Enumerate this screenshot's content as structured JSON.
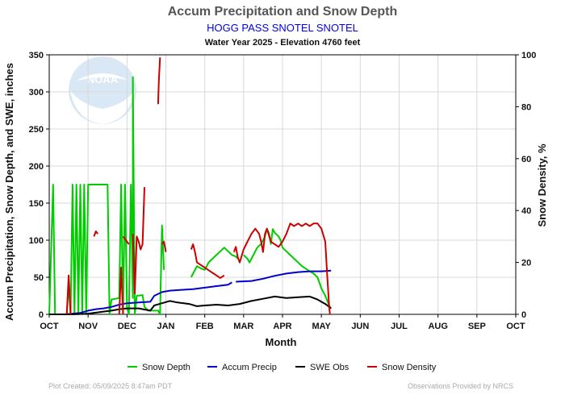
{
  "chart_data": {
    "type": "line",
    "title": "Accum Precipitation and Snow Depth",
    "subtitle": "HOGG PASS SNOTEL SNOTEL",
    "subtitle2": "Water Year 2025 -  Elevation 4760 feet",
    "xlabel": "Month",
    "ylabel_left": "Accum Precipitation, Snow Depth, and SWE, inches",
    "ylabel_right": "Snow Density, %",
    "x_categories": [
      "OCT",
      "NOV",
      "DEC",
      "JAN",
      "FEB",
      "MAR",
      "APR",
      "MAY",
      "JUN",
      "JUL",
      "AUG",
      "SEP",
      "OCT"
    ],
    "ylim_left": [
      0,
      350
    ],
    "yticks_left": [
      "0",
      "50",
      "100",
      "150",
      "200",
      "250",
      "300",
      "350"
    ],
    "ylim_right": [
      0,
      100
    ],
    "yticks_right": [
      "0",
      "20",
      "40",
      "60",
      "80",
      "100"
    ],
    "grid": true,
    "legend_position": "bottom",
    "series": [
      {
        "name": "Snow Depth",
        "color": "#00cc00",
        "axis": "left",
        "segments": [
          [
            [
              0.0,
              0
            ],
            [
              0.1,
              175
            ],
            [
              0.15,
              0
            ],
            [
              0.45,
              0
            ],
            [
              0.5,
              40
            ],
            [
              0.55,
              0
            ],
            [
              0.6,
              175
            ],
            [
              0.65,
              0
            ],
            [
              0.7,
              175
            ],
            [
              0.75,
              0
            ],
            [
              0.8,
              175
            ],
            [
              0.85,
              0
            ],
            [
              0.9,
              175
            ],
            [
              0.95,
              0
            ],
            [
              1.0,
              175
            ],
            [
              1.5,
              175
            ],
            [
              1.55,
              0
            ],
            [
              1.6,
              20
            ],
            [
              1.8,
              22
            ],
            [
              1.85,
              175
            ],
            [
              1.9,
              0
            ],
            [
              1.95,
              175
            ],
            [
              2.0,
              10
            ],
            [
              2.05,
              0
            ],
            [
              2.1,
              175
            ],
            [
              2.15,
              22
            ],
            [
              2.15,
              320
            ],
            [
              2.2,
              0
            ],
            [
              2.25,
              25
            ],
            [
              2.4,
              26
            ],
            [
              2.45,
              10
            ],
            [
              2.55,
              5
            ],
            [
              2.8,
              5
            ],
            [
              2.85,
              0
            ],
            [
              2.9,
              120
            ],
            [
              2.95,
              60
            ]
          ],
          [
            [
              3.65,
              50
            ],
            [
              3.7,
              55
            ],
            [
              3.8,
              65
            ],
            [
              3.9,
              62
            ],
            [
              4.0,
              60
            ],
            [
              4.1,
              70
            ],
            [
              4.2,
              75
            ],
            [
              4.3,
              80
            ],
            [
              4.4,
              85
            ],
            [
              4.5,
              90
            ],
            [
              4.6,
              85
            ],
            [
              4.7,
              80
            ],
            [
              4.8,
              78
            ],
            [
              4.85,
              75
            ]
          ],
          [
            [
              5.0,
              80
            ],
            [
              5.1,
              75
            ],
            [
              5.15,
              70
            ],
            [
              5.25,
              80
            ],
            [
              5.35,
              90
            ],
            [
              5.45,
              95
            ],
            [
              5.55,
              105
            ],
            [
              5.6,
              115
            ],
            [
              5.65,
              110
            ],
            [
              5.7,
              95
            ],
            [
              5.75,
              115
            ],
            [
              5.8,
              110
            ],
            [
              5.9,
              105
            ],
            [
              5.95,
              100
            ],
            [
              6.0,
              90
            ],
            [
              6.1,
              85
            ],
            [
              6.2,
              80
            ],
            [
              6.3,
              75
            ],
            [
              6.5,
              65
            ],
            [
              6.7,
              58
            ],
            [
              6.8,
              55
            ],
            [
              6.9,
              50
            ],
            [
              7.0,
              35
            ],
            [
              7.1,
              25
            ],
            [
              7.2,
              12
            ],
            [
              7.25,
              8
            ]
          ]
        ]
      },
      {
        "name": "Accum Precip",
        "color": "#0000cc",
        "axis": "left",
        "segments": [
          [
            [
              0.0,
              0
            ],
            [
              0.4,
              0
            ],
            [
              0.6,
              1
            ],
            [
              0.8,
              2
            ],
            [
              1.0,
              5
            ],
            [
              1.2,
              7
            ],
            [
              1.4,
              8
            ],
            [
              1.6,
              10
            ],
            [
              1.8,
              13
            ],
            [
              2.0,
              15
            ],
            [
              2.3,
              16
            ],
            [
              2.6,
              17
            ],
            [
              2.7,
              25
            ],
            [
              2.9,
              30
            ],
            [
              3.1,
              32
            ],
            [
              3.4,
              33
            ],
            [
              3.7,
              34
            ],
            [
              4.0,
              36
            ],
            [
              4.3,
              38
            ],
            [
              4.6,
              40
            ],
            [
              4.7,
              43
            ]
          ],
          [
            [
              4.8,
              44
            ],
            [
              5.2,
              45
            ],
            [
              5.5,
              48
            ],
            [
              5.8,
              52
            ],
            [
              6.1,
              55
            ],
            [
              6.4,
              57
            ],
            [
              6.7,
              58
            ],
            [
              7.0,
              58
            ],
            [
              7.25,
              59
            ]
          ]
        ]
      },
      {
        "name": "SWE Obs",
        "color": "#000000",
        "axis": "left",
        "segments": [
          [
            [
              0.0,
              0
            ],
            [
              0.6,
              0
            ],
            [
              1.0,
              1
            ],
            [
              1.3,
              3
            ],
            [
              1.6,
              5
            ],
            [
              1.8,
              7
            ],
            [
              2.0,
              8
            ],
            [
              2.3,
              8
            ],
            [
              2.5,
              6
            ],
            [
              2.6,
              5
            ],
            [
              2.7,
              12
            ],
            [
              2.9,
              15
            ],
            [
              3.1,
              18
            ],
            [
              3.3,
              16
            ],
            [
              3.6,
              14
            ],
            [
              3.8,
              11
            ],
            [
              4.0,
              12
            ],
            [
              4.3,
              13
            ],
            [
              4.6,
              12
            ],
            [
              4.9,
              14
            ],
            [
              5.2,
              18
            ],
            [
              5.5,
              21
            ],
            [
              5.8,
              24
            ],
            [
              6.1,
              22
            ],
            [
              6.4,
              23
            ],
            [
              6.7,
              24
            ],
            [
              6.9,
              20
            ],
            [
              7.1,
              14
            ],
            [
              7.25,
              8
            ]
          ]
        ]
      },
      {
        "name": "Snow Density",
        "color": "#cc0000",
        "axis": "right",
        "segments": [
          [
            [
              0.45,
              0
            ],
            [
              0.5,
              15
            ],
            [
              0.55,
              0
            ]
          ],
          [
            [
              1.15,
              30
            ],
            [
              1.2,
              32
            ],
            [
              1.25,
              31
            ]
          ],
          [
            [
              1.8,
              0
            ],
            [
              1.85,
              18
            ],
            [
              1.9,
              0
            ]
          ],
          [
            [
              1.9,
              30
            ],
            [
              2.0,
              28
            ],
            [
              2.05,
              27
            ]
          ],
          [
            [
              2.15,
              31
            ],
            [
              2.2,
              8
            ],
            [
              2.25,
              30
            ],
            [
              2.3,
              28
            ],
            [
              2.35,
              25
            ],
            [
              2.4,
              27
            ],
            [
              2.45,
              49
            ]
          ],
          [
            [
              2.8,
              81
            ],
            [
              2.82,
              90
            ],
            [
              2.85,
              99
            ]
          ],
          [
            [
              2.9,
              27
            ],
            [
              2.95,
              28
            ],
            [
              3.0,
              24
            ]
          ],
          [
            [
              3.65,
              25
            ],
            [
              3.7,
              27
            ],
            [
              3.75,
              24
            ],
            [
              3.8,
              20
            ],
            [
              3.9,
              19
            ],
            [
              4.0,
              18
            ],
            [
              4.1,
              17
            ],
            [
              4.2,
              16
            ],
            [
              4.3,
              15
            ],
            [
              4.4,
              14
            ],
            [
              4.5,
              15
            ]
          ],
          [
            [
              4.75,
              24
            ],
            [
              4.8,
              26
            ],
            [
              4.85,
              22
            ],
            [
              4.9,
              20
            ],
            [
              5.0,
              25
            ],
            [
              5.1,
              28
            ],
            [
              5.2,
              31
            ],
            [
              5.3,
              33
            ],
            [
              5.4,
              31
            ],
            [
              5.45,
              28
            ],
            [
              5.5,
              24
            ],
            [
              5.55,
              31
            ],
            [
              5.6,
              33
            ],
            [
              5.7,
              28
            ],
            [
              5.8,
              27
            ],
            [
              5.9,
              26
            ],
            [
              6.0,
              28
            ],
            [
              6.1,
              31
            ],
            [
              6.2,
              35
            ],
            [
              6.3,
              34
            ],
            [
              6.4,
              35
            ],
            [
              6.5,
              34
            ],
            [
              6.6,
              35
            ],
            [
              6.7,
              34
            ],
            [
              6.8,
              35
            ],
            [
              6.9,
              35
            ],
            [
              7.0,
              33
            ],
            [
              7.1,
              28
            ],
            [
              7.15,
              15
            ],
            [
              7.2,
              3
            ],
            [
              7.22,
              0
            ]
          ]
        ]
      }
    ]
  },
  "logo": {
    "text": "NOAA"
  },
  "footer": {
    "created": "Plot Created: 05/09/2025 8:47am PDT",
    "provider": "Observations Provided by NRCS"
  }
}
